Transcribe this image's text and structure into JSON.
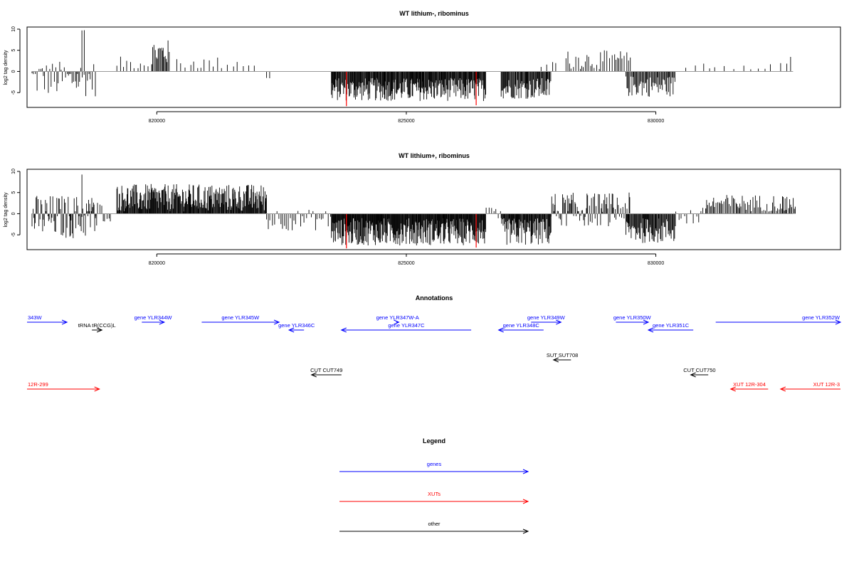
{
  "chart_data": [
    {
      "type": "bar",
      "title": "WT lithium-, ribominus",
      "ylabel": "log2 tag density",
      "xlim": [
        817400,
        833700
      ],
      "ylim": [
        -8.5,
        10.5
      ],
      "x_ticks": [
        820000,
        825000,
        830000
      ],
      "x_tick_labels": [
        "820000",
        "825000",
        "830000"
      ],
      "y_ticks": [
        -5,
        0,
        5,
        10
      ],
      "y_tick_labels": [
        "-5",
        "0",
        "5",
        "10"
      ],
      "baseline": 0,
      "highlight_color": "#ff0000",
      "highlights": [
        {
          "x": 823800,
          "value": -8.2
        },
        {
          "x": 826400,
          "value": -8.0
        }
      ],
      "regions": [
        {
          "start": 817500,
          "end": 818800,
          "min": -6.0,
          "max": 2.5,
          "step": 30
        },
        {
          "start": 818500,
          "end": 818550,
          "min": 9.5,
          "max": 9.8,
          "step": 50
        },
        {
          "start": 819200,
          "end": 819900,
          "min": 0.5,
          "max": 3.5,
          "step": 60
        },
        {
          "start": 819900,
          "end": 820250,
          "min": 1.5,
          "max": 7.5,
          "step": 20
        },
        {
          "start": 820400,
          "end": 822000,
          "min": 0.5,
          "max": 3.5,
          "step": 90
        },
        {
          "start": 822200,
          "end": 822300,
          "min": -3.0,
          "max": -1.0,
          "step": 60
        },
        {
          "start": 823500,
          "end": 826600,
          "min": -7.0,
          "max": -1.5,
          "step": 12
        },
        {
          "start": 826900,
          "end": 827900,
          "min": -6.5,
          "max": -1.5,
          "step": 15
        },
        {
          "start": 827700,
          "end": 828000,
          "min": 0.5,
          "max": 3.0,
          "step": 100
        },
        {
          "start": 828200,
          "end": 829500,
          "min": 0.5,
          "max": 5.0,
          "step": 40
        },
        {
          "start": 829400,
          "end": 830400,
          "min": -6.0,
          "max": -1.0,
          "step": 18
        },
        {
          "start": 830600,
          "end": 832700,
          "min": 0.5,
          "max": 2.5,
          "step": 150
        },
        {
          "start": 832700,
          "end": 832750,
          "min": 3.0,
          "max": 3.8,
          "step": 60
        }
      ]
    },
    {
      "type": "bar",
      "title": "WT lithium+, ribominus",
      "ylabel": "log2 tag density",
      "xlim": [
        817400,
        833700
      ],
      "ylim": [
        -8.5,
        10.5
      ],
      "x_ticks": [
        820000,
        825000,
        830000
      ],
      "x_tick_labels": [
        "820000",
        "825000",
        "830000"
      ],
      "y_ticks": [
        -5,
        0,
        5,
        10
      ],
      "y_tick_labels": [
        "-5",
        "0",
        "5",
        "10"
      ],
      "baseline": 0,
      "highlight_color": "#ff0000",
      "highlights": [
        {
          "x": 823800,
          "value": -8.2
        },
        {
          "x": 826400,
          "value": -8.0
        }
      ],
      "regions": [
        {
          "start": 817500,
          "end": 818800,
          "min": -6.0,
          "max": 4.5,
          "step": 18
        },
        {
          "start": 818500,
          "end": 818550,
          "min": 9.0,
          "max": 9.4,
          "step": 50
        },
        {
          "start": 818600,
          "end": 819100,
          "min": -2.0,
          "max": 3.0,
          "step": 40
        },
        {
          "start": 819200,
          "end": 822200,
          "min": 0.5,
          "max": 7.0,
          "step": 12
        },
        {
          "start": 822200,
          "end": 823500,
          "min": -4.0,
          "max": 1.0,
          "step": 40
        },
        {
          "start": 823500,
          "end": 826600,
          "min": -7.5,
          "max": -1.0,
          "step": 10
        },
        {
          "start": 826600,
          "end": 826900,
          "min": -2.0,
          "max": 1.5,
          "step": 60
        },
        {
          "start": 826900,
          "end": 827900,
          "min": -7.5,
          "max": -1.0,
          "step": 12
        },
        {
          "start": 827900,
          "end": 829500,
          "min": -3.0,
          "max": 5.0,
          "step": 18
        },
        {
          "start": 829400,
          "end": 830400,
          "min": -7.0,
          "max": -1.0,
          "step": 14
        },
        {
          "start": 830400,
          "end": 831000,
          "min": -3.0,
          "max": 1.5,
          "step": 60
        },
        {
          "start": 831000,
          "end": 832800,
          "min": 0.5,
          "max": 4.5,
          "step": 25
        }
      ]
    }
  ],
  "annotations": {
    "title": "Annotations",
    "items": [
      {
        "label": "343W",
        "start": 817400,
        "end": 818200,
        "strand": "+",
        "row": 0,
        "color": "#0000ff"
      },
      {
        "label": "gene YLR344W",
        "start": 819700,
        "end": 820150,
        "strand": "+",
        "row": 0,
        "color": "#0000ff"
      },
      {
        "label": "tRNA tR(CCG)L",
        "start": 818700,
        "end": 818900,
        "strand": "+",
        "row": 1,
        "color": "#000000"
      },
      {
        "label": "gene YLR345W",
        "start": 820900,
        "end": 822450,
        "strand": "+",
        "row": 0,
        "color": "#0000ff"
      },
      {
        "label": "gene YLR346C",
        "start": 822650,
        "end": 822950,
        "strand": "-",
        "row": 1,
        "color": "#0000ff"
      },
      {
        "label": "gene YLR347W-A",
        "start": 824800,
        "end": 824850,
        "strand": "+",
        "row": 0,
        "color": "#0000ff"
      },
      {
        "label": "gene YLR347C",
        "start": 823700,
        "end": 826300,
        "strand": "-",
        "row": 1,
        "color": "#0000ff"
      },
      {
        "label": "gene YLR349W",
        "start": 827500,
        "end": 828100,
        "strand": "+",
        "row": 0,
        "color": "#0000ff"
      },
      {
        "label": "gene YLR348C",
        "start": 826850,
        "end": 827750,
        "strand": "-",
        "row": 1,
        "color": "#0000ff"
      },
      {
        "label": "gene YLR350W",
        "start": 829200,
        "end": 829850,
        "strand": "+",
        "row": 0,
        "color": "#0000ff"
      },
      {
        "label": "gene YLR351C",
        "start": 829850,
        "end": 830750,
        "strand": "-",
        "row": 1,
        "color": "#0000ff"
      },
      {
        "label": "gene YLR352W",
        "start": 831200,
        "end": 833700,
        "strand": "+",
        "row": 0,
        "color": "#0000ff"
      },
      {
        "label": "SUT SUT708",
        "start": 827950,
        "end": 828300,
        "strand": "-",
        "row": 2,
        "color": "#000000"
      },
      {
        "label": "CUT CUT749",
        "start": 823100,
        "end": 823700,
        "strand": "-",
        "row": 3,
        "color": "#000000"
      },
      {
        "label": "CUT CUT750",
        "start": 830700,
        "end": 831050,
        "strand": "-",
        "row": 3,
        "color": "#000000"
      },
      {
        "label": "12R-299",
        "start": 817400,
        "end": 818850,
        "strand": "+",
        "row": 4,
        "color": "#ff0000"
      },
      {
        "label": "XUT 12R-304",
        "start": 831500,
        "end": 832250,
        "strand": "-",
        "row": 4,
        "color": "#ff0000"
      },
      {
        "label": "XUT 12R-3",
        "start": 832500,
        "end": 833700,
        "strand": "-",
        "row": 4,
        "color": "#ff0000"
      }
    ]
  },
  "legend": {
    "title": "Legend",
    "items": [
      {
        "label": "genes",
        "color": "#0000ff"
      },
      {
        "label": "XUTs",
        "color": "#ff0000"
      },
      {
        "label": "other",
        "color": "#000000"
      }
    ]
  }
}
